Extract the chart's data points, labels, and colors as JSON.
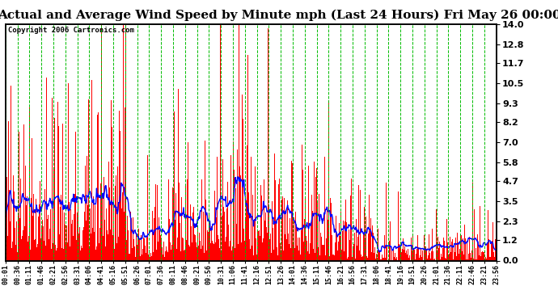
{
  "title": "Actual and Average Wind Speed by Minute mph (Last 24 Hours) Fri May 26 00:00",
  "copyright": "Copyright 2006 Cartronics.com",
  "yticks": [
    0.0,
    1.2,
    2.3,
    3.5,
    4.7,
    5.8,
    7.0,
    8.2,
    9.3,
    10.5,
    11.7,
    12.8,
    14.0
  ],
  "ylim": [
    0.0,
    14.0
  ],
  "xtick_labels": [
    "00:01",
    "00:36",
    "01:11",
    "01:46",
    "02:21",
    "02:56",
    "03:31",
    "04:06",
    "04:41",
    "05:16",
    "05:51",
    "06:26",
    "07:01",
    "07:36",
    "08:11",
    "08:46",
    "09:21",
    "09:56",
    "10:31",
    "11:06",
    "11:41",
    "12:16",
    "12:51",
    "13:26",
    "14:01",
    "14:36",
    "15:11",
    "15:46",
    "16:21",
    "16:56",
    "17:31",
    "18:06",
    "18:41",
    "19:16",
    "19:51",
    "20:26",
    "21:01",
    "21:36",
    "22:11",
    "22:46",
    "23:21",
    "23:56"
  ],
  "background_color": "#ffffff",
  "bar_color": "#ff0000",
  "line_color": "#0000ff",
  "grid_color": "#00bb00",
  "title_fontsize": 11,
  "n_minutes": 1440,
  "seed": 99
}
